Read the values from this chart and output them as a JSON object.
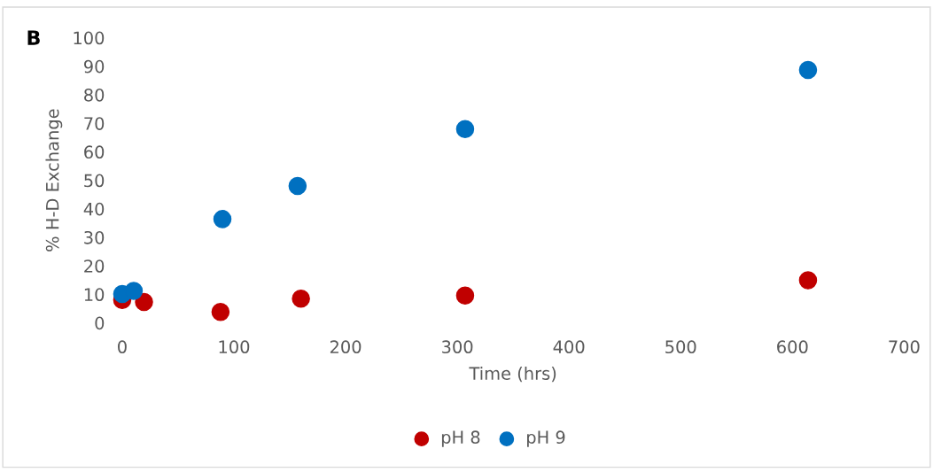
{
  "chart_data": {
    "type": "scatter",
    "xlabel": "Time (hrs)",
    "ylabel": "% H-D Exchange",
    "annotations": [
      "B"
    ],
    "series": [
      {
        "name": "pH 8",
        "color": "#c00000",
        "x": [
          0,
          19.5,
          88,
          160,
          307,
          614
        ],
        "values": [
          8.0,
          7.3,
          3.8,
          8.5,
          9.6,
          14.9
        ]
      },
      {
        "name": "pH 9",
        "color": "#0070c0",
        "x": [
          0,
          10.3,
          89.7,
          157,
          307,
          614
        ],
        "values": [
          10.1,
          11.2,
          36.4,
          48.0,
          68.0,
          88.7
        ]
      }
    ],
    "xlim": [
      0,
      700
    ],
    "xticks": [
      0,
      100,
      200,
      300,
      400,
      500,
      600,
      700
    ],
    "ylim": [
      0,
      100
    ],
    "yticks": [
      0,
      10,
      20,
      30,
      40,
      50,
      60,
      70,
      80,
      90,
      100
    ],
    "grid": false,
    "legend": "bottom",
    "marker": "circle"
  }
}
